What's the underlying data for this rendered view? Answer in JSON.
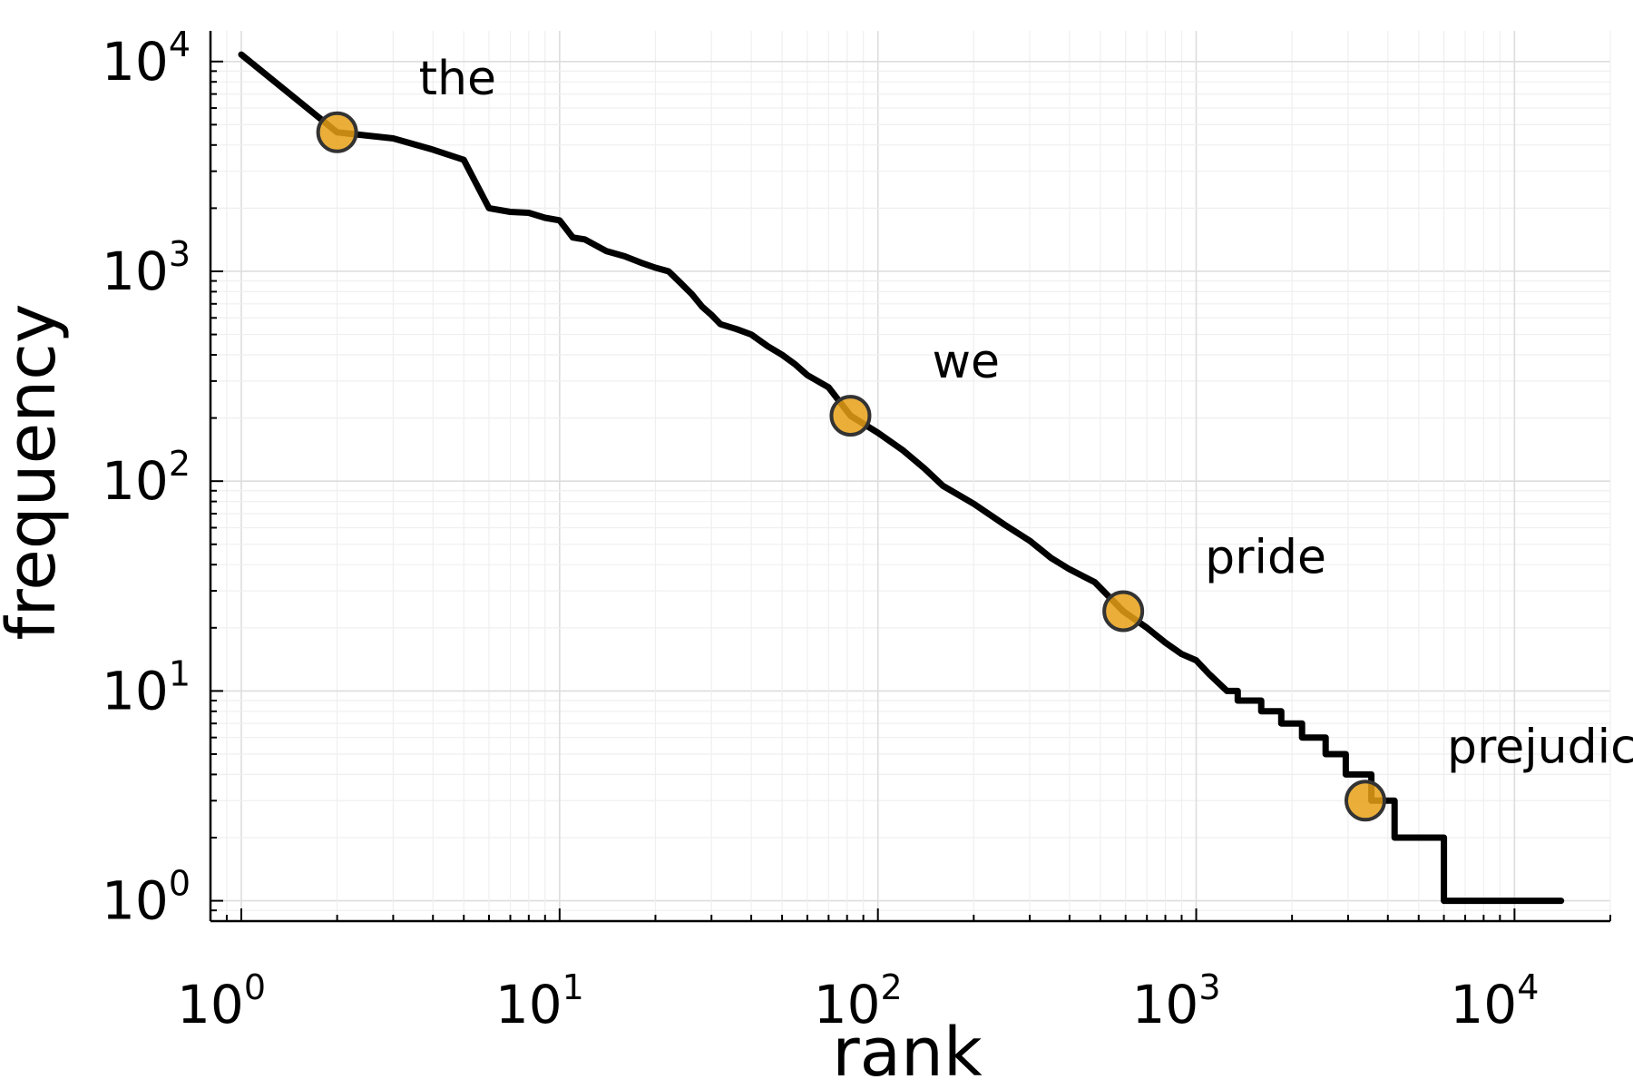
{
  "chart_data": {
    "type": "line",
    "xlabel": "rank",
    "ylabel": "frequency",
    "xscale": "log10",
    "yscale": "log10",
    "xlim": [
      0.8,
      20000
    ],
    "ylim": [
      0.8,
      14000
    ],
    "grid": true,
    "legend": "none",
    "x_ticks": [
      {
        "base": "10",
        "exp": "0",
        "value": 1
      },
      {
        "base": "10",
        "exp": "1",
        "value": 10
      },
      {
        "base": "10",
        "exp": "2",
        "value": 100
      },
      {
        "base": "10",
        "exp": "3",
        "value": 1000
      },
      {
        "base": "10",
        "exp": "4",
        "value": 10000
      }
    ],
    "y_ticks": [
      {
        "base": "10",
        "exp": "0",
        "value": 1
      },
      {
        "base": "10",
        "exp": "1",
        "value": 10
      },
      {
        "base": "10",
        "exp": "2",
        "value": 100
      },
      {
        "base": "10",
        "exp": "3",
        "value": 1000
      },
      {
        "base": "10",
        "exp": "4",
        "value": 10000
      }
    ],
    "series": [
      {
        "color": "#000000",
        "points": [
          [
            1,
            10800
          ],
          [
            2,
            4600
          ],
          [
            3,
            4300
          ],
          [
            4,
            3800
          ],
          [
            5,
            3400
          ],
          [
            6,
            2000
          ],
          [
            7,
            1920
          ],
          [
            8,
            1900
          ],
          [
            9,
            1800
          ],
          [
            10,
            1750
          ],
          [
            11,
            1450
          ],
          [
            12,
            1420
          ],
          [
            14,
            1250
          ],
          [
            16,
            1180
          ],
          [
            18,
            1100
          ],
          [
            20,
            1040
          ],
          [
            22,
            1000
          ],
          [
            24,
            880
          ],
          [
            26,
            780
          ],
          [
            28,
            680
          ],
          [
            30,
            620
          ],
          [
            32,
            560
          ],
          [
            36,
            530
          ],
          [
            40,
            500
          ],
          [
            45,
            440
          ],
          [
            50,
            400
          ],
          [
            55,
            360
          ],
          [
            60,
            320
          ],
          [
            70,
            280
          ],
          [
            82,
            205
          ],
          [
            100,
            170
          ],
          [
            120,
            140
          ],
          [
            140,
            115
          ],
          [
            160,
            95
          ],
          [
            200,
            78
          ],
          [
            250,
            62
          ],
          [
            300,
            52
          ],
          [
            350,
            43
          ],
          [
            400,
            38
          ],
          [
            480,
            33
          ],
          [
            590,
            24
          ],
          [
            700,
            20
          ],
          [
            800,
            17
          ],
          [
            900,
            15
          ],
          [
            1000,
            14
          ],
          [
            1100,
            12
          ],
          [
            1250,
            10
          ],
          [
            1350,
            10
          ],
          [
            1350,
            9
          ],
          [
            1600,
            9
          ],
          [
            1600,
            8
          ],
          [
            1850,
            8
          ],
          [
            1850,
            7
          ],
          [
            2150,
            7
          ],
          [
            2150,
            6
          ],
          [
            2550,
            6
          ],
          [
            2550,
            5
          ],
          [
            2950,
            5
          ],
          [
            2950,
            4
          ],
          [
            3550,
            4
          ],
          [
            3550,
            3
          ],
          [
            4200,
            3
          ],
          [
            4200,
            2
          ],
          [
            6000,
            2
          ],
          [
            6000,
            1
          ],
          [
            14000,
            1
          ]
        ]
      }
    ],
    "highlights": [
      {
        "word": "the",
        "rank": 2,
        "frequency": 4600
      },
      {
        "word": "we",
        "rank": 82,
        "frequency": 205
      },
      {
        "word": "pride",
        "rank": 590,
        "frequency": 24
      },
      {
        "word": "prejudice",
        "rank": 3400,
        "frequency": 3
      }
    ],
    "marker_color": "#e6a016",
    "grid_color": "#e8e8e8"
  }
}
